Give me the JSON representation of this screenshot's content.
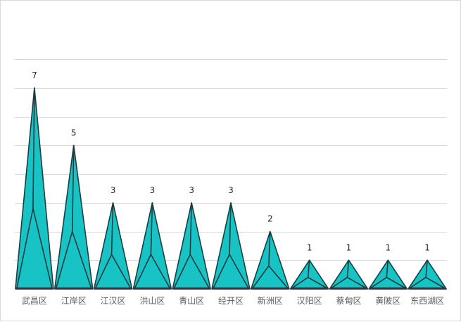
{
  "chart_data": {
    "type": "bar",
    "style": "3d-pyramid",
    "categories": [
      "武昌区",
      "江岸区",
      "江汉区",
      "洪山区",
      "青山区",
      "经开区",
      "新洲区",
      "汉阳区",
      "蔡甸区",
      "黄陂区",
      "东西湖区"
    ],
    "values": [
      7,
      5,
      3,
      3,
      3,
      3,
      2,
      1,
      1,
      1,
      1
    ],
    "data_labels": [
      "7",
      "5",
      "3",
      "3",
      "3",
      "3",
      "2",
      "1",
      "1",
      "1",
      "1"
    ],
    "ylim": [
      0,
      8
    ],
    "y_gridlines": [
      0,
      1,
      2,
      3,
      4,
      5,
      6,
      7,
      8
    ],
    "grid": true,
    "y_tick_labels_visible": false,
    "legend": "none",
    "colors": {
      "fill": "#17C3C4",
      "edge": "#1F3B3F",
      "grid": "#D9D9D9",
      "axis": "#BFBFBF"
    }
  }
}
